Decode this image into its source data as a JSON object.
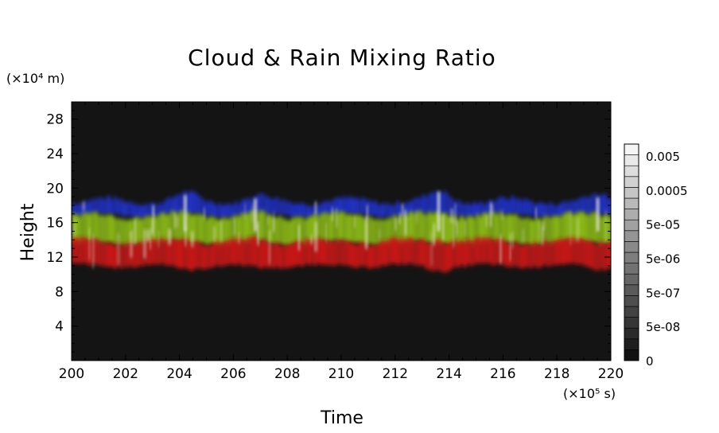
{
  "chart_data": {
    "type": "heatmap",
    "title": "Cloud & Rain Mixing Ratio",
    "xlabel": "Time",
    "ylabel": "Height",
    "x_unit_label": "(×10⁵ s)",
    "y_unit_label": "(×10⁴ m)",
    "xlim": [
      200,
      220
    ],
    "ylim": [
      0,
      30
    ],
    "xticks": [
      "200",
      "202",
      "204",
      "206",
      "208",
      "210",
      "212",
      "214",
      "216",
      "218",
      "220"
    ],
    "yticks": [
      "4",
      "8",
      "12",
      "16",
      "20",
      "24",
      "28"
    ],
    "colorbar": {
      "labels": [
        "0.005",
        "0.0005",
        "5e-05",
        "5e-06",
        "5e-07",
        "5e-08",
        "0"
      ],
      "min": 0,
      "max": 0.005,
      "scale": "log"
    },
    "background": "#141414",
    "layers": [
      {
        "color": "#2030c0",
        "y_bottom": 16.8,
        "y_top": 18.5
      },
      {
        "color": "#8ab818",
        "y_bottom": 13.6,
        "y_top": 16.8
      },
      {
        "color": "#c81818",
        "y_bottom": 11.0,
        "y_top": 13.8
      }
    ],
    "peaks": [
      {
        "x": 204.2,
        "y_top": 19.2
      },
      {
        "x": 206.8,
        "y_top": 18.8
      },
      {
        "x": 213.6,
        "y_top": 19.6
      },
      {
        "x": 219.5,
        "y_top": 18.9
      }
    ]
  }
}
